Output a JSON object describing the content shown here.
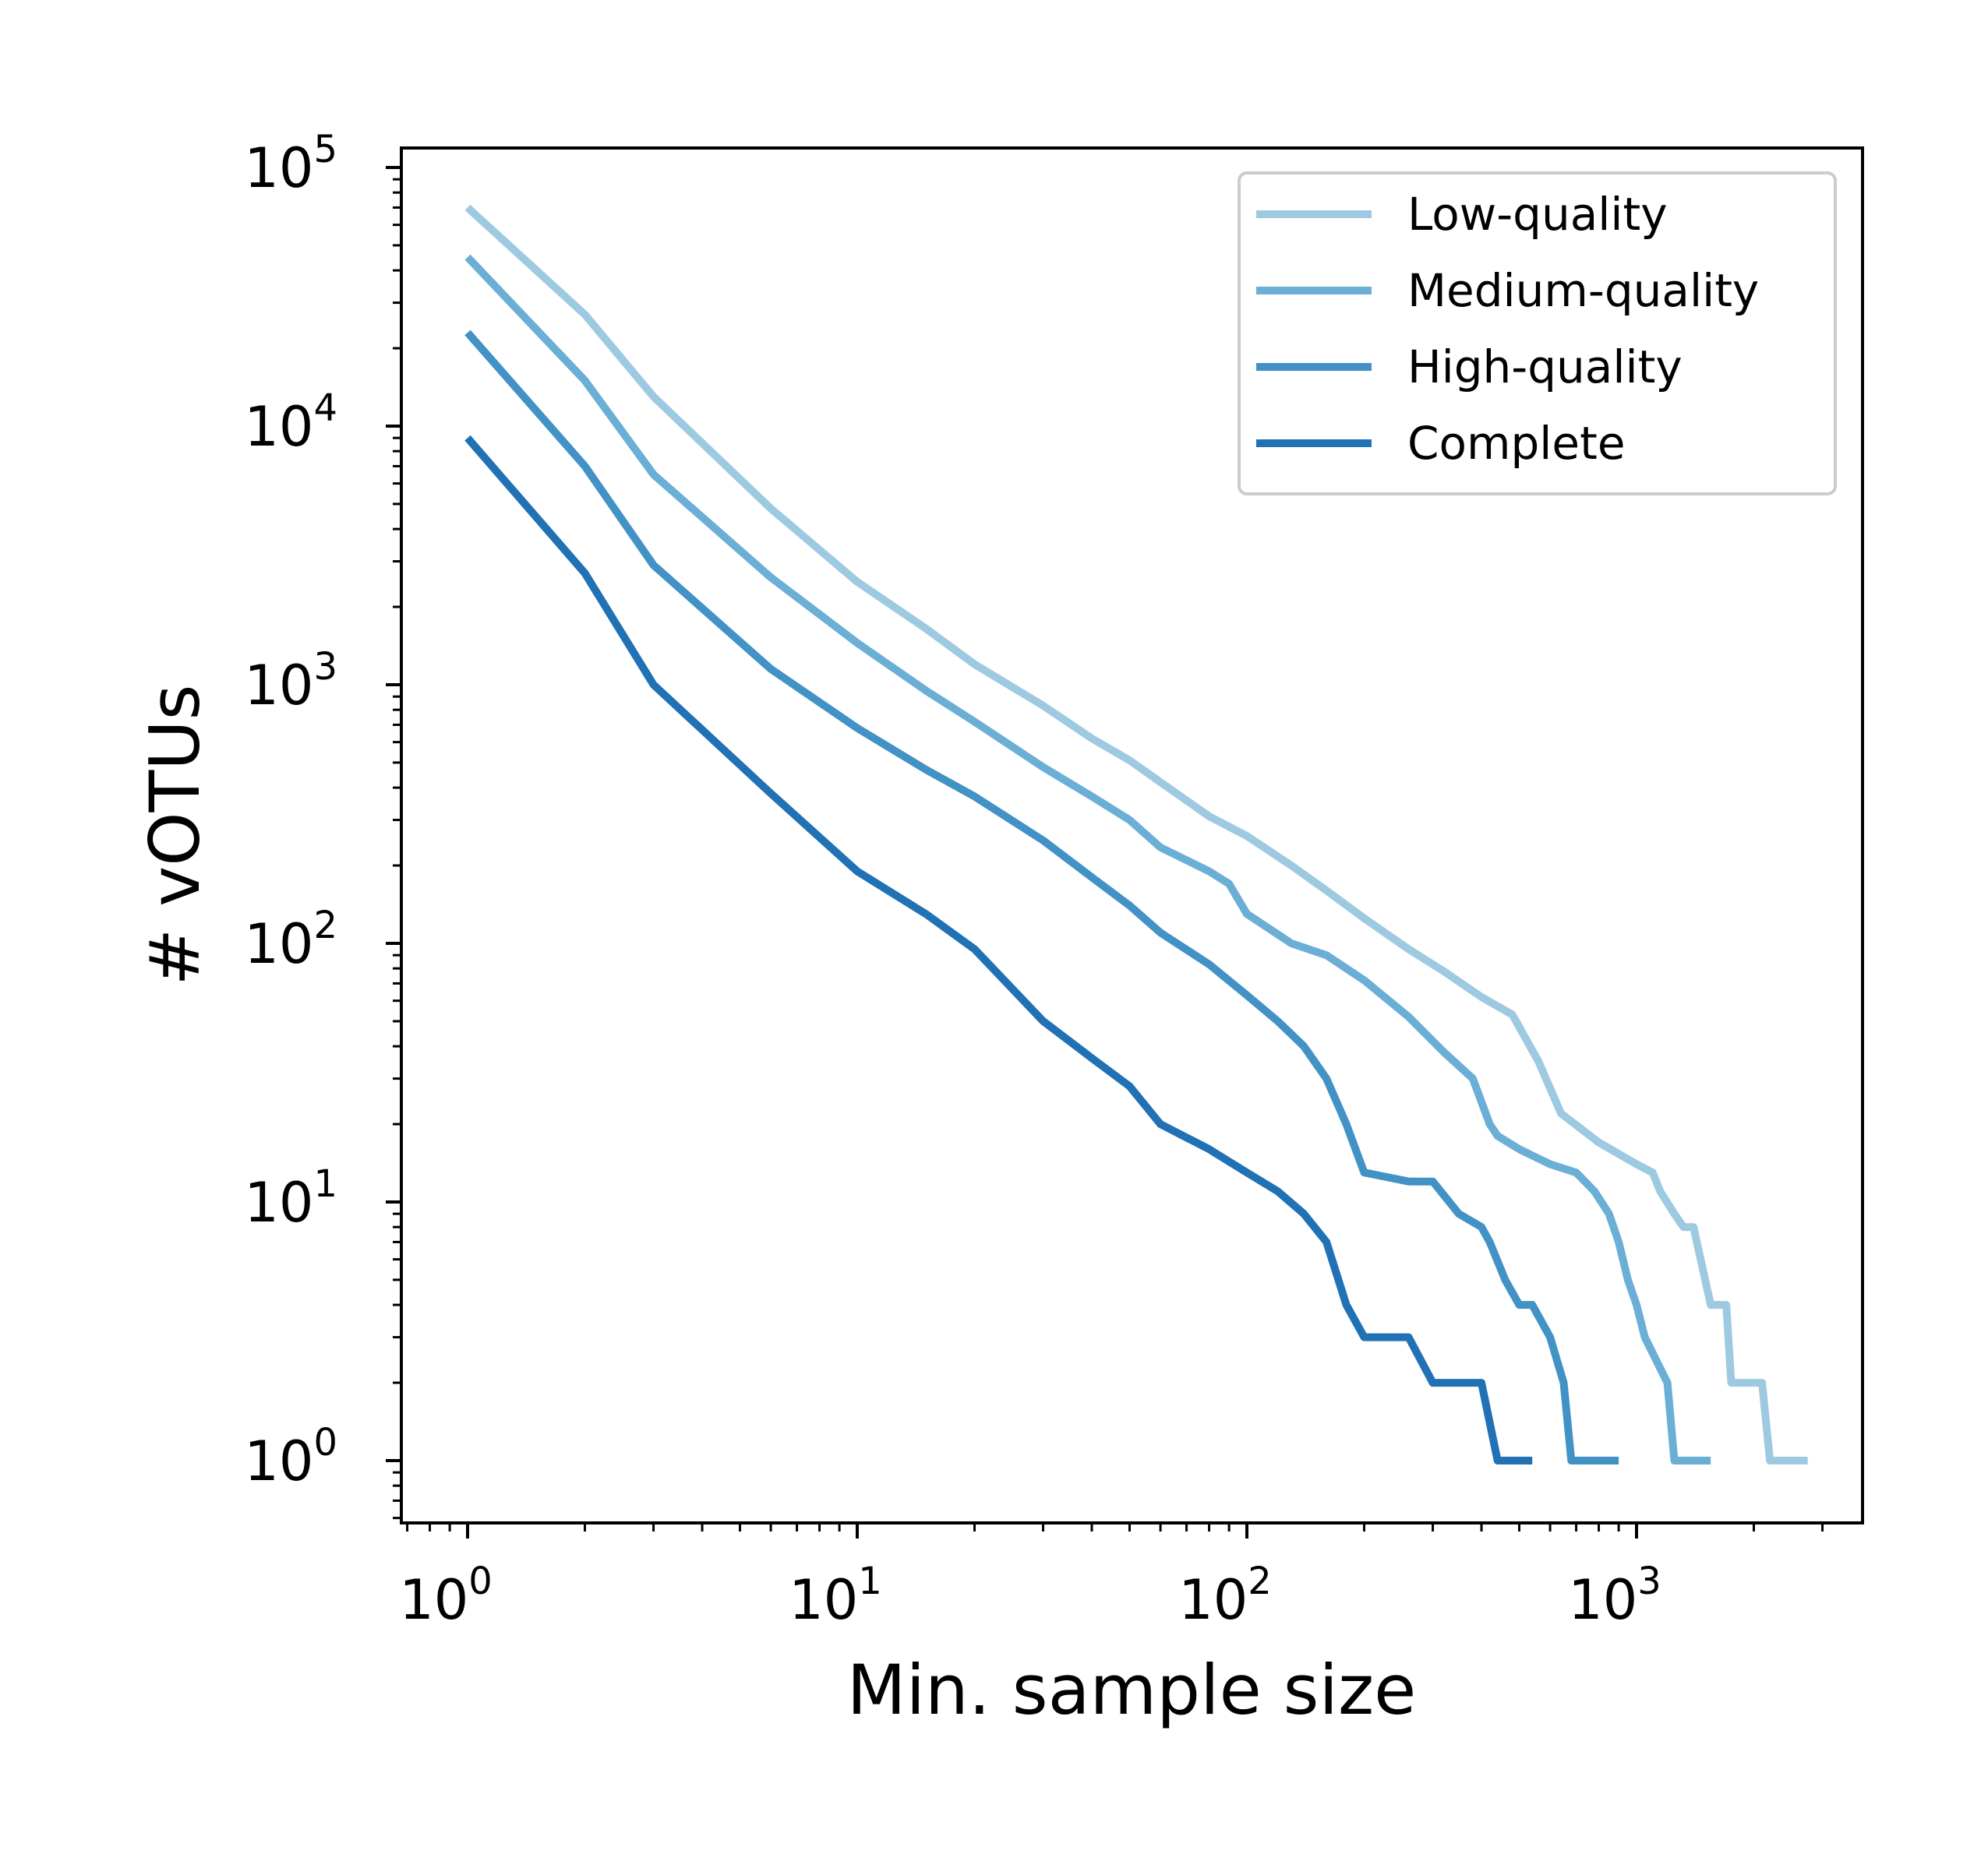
{
  "chart_data": {
    "type": "line",
    "xlabel": "Min. sample size",
    "ylabel": "# vOTUs",
    "x_scale": "log",
    "y_scale": "log",
    "xlim": [
      0.7,
      3600
    ],
    "ylim": [
      0.58,
      130000
    ],
    "x_ticks": [
      {
        "base": "10",
        "exp": "0",
        "value": 1
      },
      {
        "base": "10",
        "exp": "1",
        "value": 10
      },
      {
        "base": "10",
        "exp": "2",
        "value": 100
      },
      {
        "base": "10",
        "exp": "3",
        "value": 1000
      }
    ],
    "y_ticks": [
      {
        "base": "10",
        "exp": "0",
        "value": 1
      },
      {
        "base": "10",
        "exp": "1",
        "value": 10
      },
      {
        "base": "10",
        "exp": "2",
        "value": 100
      },
      {
        "base": "10",
        "exp": "3",
        "value": 1000
      },
      {
        "base": "10",
        "exp": "4",
        "value": 10000
      },
      {
        "base": "10",
        "exp": "5",
        "value": 100000
      }
    ],
    "grid": false,
    "legend_position": "top-right",
    "series": [
      {
        "name": "Low-quality",
        "color": "#9ecae1",
        "x": [
          1,
          2,
          3,
          6,
          10,
          15,
          20,
          30,
          40,
          50,
          60,
          80,
          100,
          130,
          160,
          200,
          260,
          320,
          400,
          480,
          560,
          640,
          800,
          1000,
          1100,
          1150,
          1250,
          1320,
          1400,
          1550,
          1700,
          1750,
          2100,
          2200,
          2750
        ],
        "values": [
          70000,
          27000,
          13000,
          4800,
          2500,
          1650,
          1200,
          830,
          620,
          510,
          420,
          310,
          260,
          200,
          160,
          125,
          95,
          78,
          62,
          53,
          35,
          22,
          17,
          14,
          13,
          11,
          9,
          8,
          8,
          4,
          4,
          2,
          2,
          1,
          1
        ]
      },
      {
        "name": "Medium-quality",
        "color": "#6baed6",
        "x": [
          1,
          2,
          3,
          6,
          10,
          15,
          20,
          30,
          40,
          50,
          60,
          80,
          90,
          100,
          130,
          160,
          200,
          260,
          320,
          380,
          420,
          440,
          500,
          600,
          700,
          780,
          850,
          900,
          950,
          1000,
          1050,
          1200,
          1250,
          1550
        ],
        "values": [
          45000,
          15000,
          6500,
          2600,
          1450,
          950,
          720,
          480,
          370,
          300,
          235,
          190,
          170,
          130,
          100,
          90,
          72,
          52,
          38,
          30,
          20,
          18,
          16,
          14,
          13,
          11,
          9,
          7,
          5,
          4,
          3,
          2,
          1,
          1
        ]
      },
      {
        "name": "High-quality",
        "color": "#4292c6",
        "x": [
          1,
          2,
          3,
          6,
          10,
          15,
          20,
          30,
          40,
          50,
          60,
          80,
          100,
          120,
          140,
          160,
          180,
          200,
          260,
          300,
          350,
          400,
          420,
          460,
          500,
          540,
          600,
          650,
          680,
          700,
          900
        ],
        "values": [
          23000,
          7000,
          2900,
          1150,
          680,
          470,
          370,
          250,
          180,
          140,
          110,
          83,
          63,
          50,
          40,
          30,
          20,
          13,
          12,
          12,
          9,
          8,
          7,
          5,
          4,
          4,
          3,
          2,
          1,
          1,
          1
        ]
      },
      {
        "name": "Complete",
        "color": "#2171b5",
        "x": [
          1,
          2,
          3,
          6,
          10,
          15,
          20,
          30,
          40,
          50,
          60,
          80,
          100,
          120,
          140,
          160,
          180,
          200,
          260,
          300,
          320,
          400,
          440,
          540
        ],
        "values": [
          9000,
          2700,
          1000,
          380,
          190,
          130,
          95,
          50,
          36,
          28,
          20,
          16,
          13,
          11,
          9,
          7,
          4,
          3,
          3,
          2,
          2,
          2,
          1,
          1
        ]
      }
    ]
  }
}
